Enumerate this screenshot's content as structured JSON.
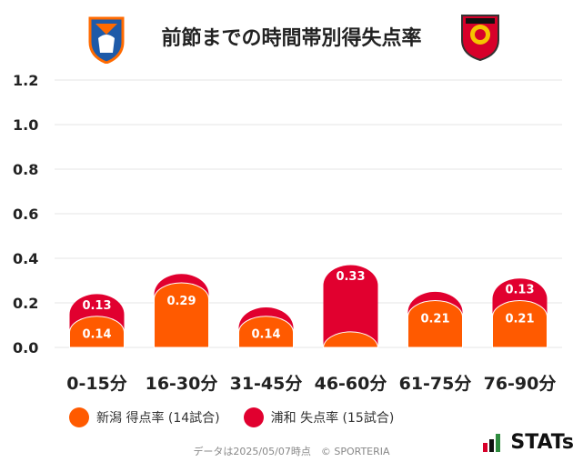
{
  "title": "前節までの時間帯別得失点率",
  "colors": {
    "home": "#ff5a00",
    "away": "#e1002f",
    "grid": "#e6e6e6"
  },
  "chart_data": {
    "type": "bar",
    "categories": [
      "0-15分",
      "16-30分",
      "31-45分",
      "46-60分",
      "61-75分",
      "76-90分"
    ],
    "series": [
      {
        "name": "新潟 得点率 (14試合)",
        "values": [
          0.14,
          0.29,
          0.14,
          0.07,
          0.21,
          0.21
        ],
        "labels": [
          "0.14",
          "0.29",
          "0.14",
          "",
          "0.21",
          "0.21"
        ]
      },
      {
        "name": "浦和 失点率 (15試合)",
        "values": [
          0.13,
          0.07,
          0.07,
          0.33,
          0.07,
          0.13
        ],
        "labels": [
          "0.13",
          "",
          "",
          "0.33",
          "",
          "0.13"
        ]
      }
    ],
    "yticks": [
      "0.0",
      "0.2",
      "0.4",
      "0.6",
      "0.8",
      "1.0",
      "1.2"
    ],
    "ylim": [
      0,
      1.2
    ],
    "stacked": true,
    "legend_position": "bottom"
  },
  "legend": {
    "home": "新潟 得点率 (14試合)",
    "away": "浦和 失点率 (15試合)"
  },
  "footer": "データは2025/05/07時点　© SPORTERIA",
  "brand": "STATs"
}
